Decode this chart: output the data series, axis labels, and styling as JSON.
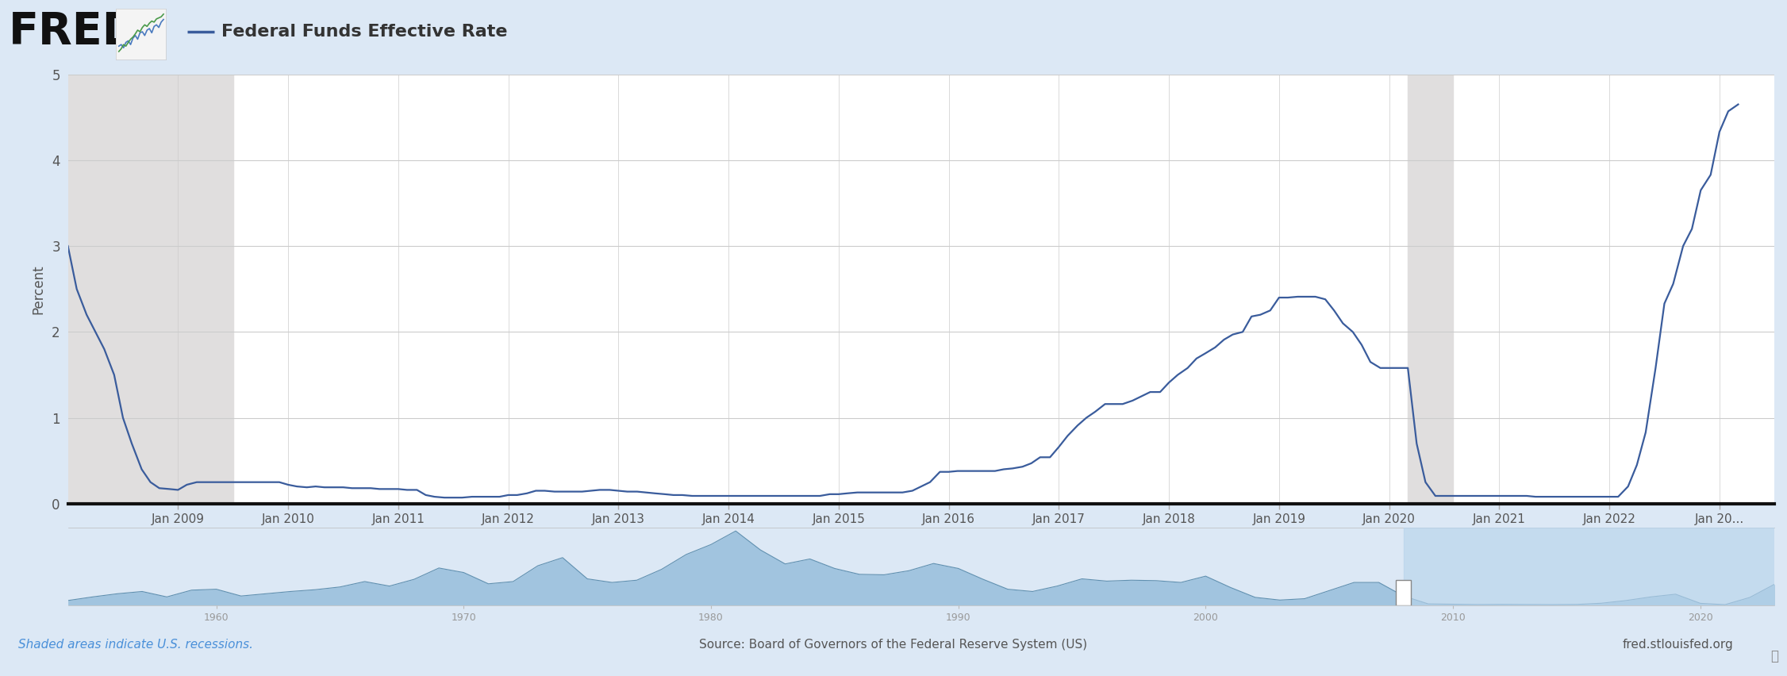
{
  "title": "Federal Funds Effective Rate",
  "ylabel": "Percent",
  "source_text": "Source: Board of Governors of the Federal Reserve System (US)",
  "shaded_text": "Shaded areas indicate U.S. recessions.",
  "fred_url": "fred.stlouisfed.org",
  "line_color": "#3a5c9c",
  "bg_color": "#dce8f5",
  "plot_bg": "#ffffff",
  "recession_color": "#e0dede",
  "ylim": [
    0,
    5
  ],
  "yticks": [
    0,
    1,
    2,
    3,
    4,
    5
  ],
  "xlim_start": 2008.0,
  "xlim_end": 2023.5,
  "recession_start1": 2008.0,
  "recession_end1": 2009.5,
  "recession_start2": 2020.17,
  "recession_end2": 2020.58,
  "xtick_years": [
    2009,
    2010,
    2011,
    2012,
    2013,
    2014,
    2015,
    2016,
    2017,
    2018,
    2019,
    2020,
    2021,
    2022,
    2023
  ],
  "xtick_labels": [
    "Jan 2009",
    "Jan 2010",
    "Jan 2011",
    "Jan 2012",
    "Jan 2013",
    "Jan 2014",
    "Jan 2015",
    "Jan 2016",
    "Jan 2017",
    "Jan 2018",
    "Jan 2019",
    "Jan 2020",
    "Jan 2021",
    "Jan 2022",
    "Jan 20..."
  ],
  "data_dates": [
    2008.0,
    2008.08,
    2008.17,
    2008.25,
    2008.33,
    2008.42,
    2008.5,
    2008.58,
    2008.67,
    2008.75,
    2008.83,
    2008.92,
    2009.0,
    2009.08,
    2009.17,
    2009.25,
    2009.33,
    2009.42,
    2009.5,
    2009.58,
    2009.67,
    2009.75,
    2009.83,
    2009.92,
    2010.0,
    2010.08,
    2010.17,
    2010.25,
    2010.33,
    2010.42,
    2010.5,
    2010.58,
    2010.67,
    2010.75,
    2010.83,
    2010.92,
    2011.0,
    2011.08,
    2011.17,
    2011.25,
    2011.33,
    2011.42,
    2011.5,
    2011.58,
    2011.67,
    2011.75,
    2011.83,
    2011.92,
    2012.0,
    2012.08,
    2012.17,
    2012.25,
    2012.33,
    2012.42,
    2012.5,
    2012.58,
    2012.67,
    2012.75,
    2012.83,
    2012.92,
    2013.0,
    2013.08,
    2013.17,
    2013.25,
    2013.33,
    2013.42,
    2013.5,
    2013.58,
    2013.67,
    2013.75,
    2013.83,
    2013.92,
    2014.0,
    2014.08,
    2014.17,
    2014.25,
    2014.33,
    2014.42,
    2014.5,
    2014.58,
    2014.67,
    2014.75,
    2014.83,
    2014.92,
    2015.0,
    2015.08,
    2015.17,
    2015.25,
    2015.33,
    2015.42,
    2015.5,
    2015.58,
    2015.67,
    2015.75,
    2015.83,
    2015.92,
    2016.0,
    2016.08,
    2016.17,
    2016.25,
    2016.33,
    2016.42,
    2016.5,
    2016.58,
    2016.67,
    2016.75,
    2016.83,
    2016.92,
    2017.0,
    2017.08,
    2017.17,
    2017.25,
    2017.33,
    2017.42,
    2017.5,
    2017.58,
    2017.67,
    2017.75,
    2017.83,
    2017.92,
    2018.0,
    2018.08,
    2018.17,
    2018.25,
    2018.33,
    2018.42,
    2018.5,
    2018.58,
    2018.67,
    2018.75,
    2018.83,
    2018.92,
    2019.0,
    2019.08,
    2019.17,
    2019.25,
    2019.33,
    2019.42,
    2019.5,
    2019.58,
    2019.67,
    2019.75,
    2019.83,
    2019.92,
    2020.0,
    2020.08,
    2020.17,
    2020.25,
    2020.33,
    2020.42,
    2020.5,
    2020.58,
    2020.67,
    2020.75,
    2020.83,
    2020.92,
    2021.0,
    2021.08,
    2021.17,
    2021.25,
    2021.33,
    2021.42,
    2021.5,
    2021.58,
    2021.67,
    2021.75,
    2021.83,
    2021.92,
    2022.0,
    2022.08,
    2022.17,
    2022.25,
    2022.33,
    2022.42,
    2022.5,
    2022.58,
    2022.67,
    2022.75,
    2022.83,
    2022.92,
    2023.0,
    2023.08,
    2023.17
  ],
  "data_values": [
    3.0,
    2.5,
    2.2,
    2.0,
    1.8,
    1.5,
    1.0,
    0.7,
    0.4,
    0.25,
    0.18,
    0.17,
    0.16,
    0.22,
    0.25,
    0.25,
    0.25,
    0.25,
    0.25,
    0.25,
    0.25,
    0.25,
    0.25,
    0.25,
    0.22,
    0.2,
    0.19,
    0.2,
    0.19,
    0.19,
    0.19,
    0.18,
    0.18,
    0.18,
    0.17,
    0.17,
    0.17,
    0.16,
    0.16,
    0.1,
    0.08,
    0.07,
    0.07,
    0.07,
    0.08,
    0.08,
    0.08,
    0.08,
    0.1,
    0.1,
    0.12,
    0.15,
    0.15,
    0.14,
    0.14,
    0.14,
    0.14,
    0.15,
    0.16,
    0.16,
    0.15,
    0.14,
    0.14,
    0.13,
    0.12,
    0.11,
    0.1,
    0.1,
    0.09,
    0.09,
    0.09,
    0.09,
    0.09,
    0.09,
    0.09,
    0.09,
    0.09,
    0.09,
    0.09,
    0.09,
    0.09,
    0.09,
    0.09,
    0.11,
    0.11,
    0.12,
    0.13,
    0.13,
    0.13,
    0.13,
    0.13,
    0.13,
    0.15,
    0.2,
    0.25,
    0.37,
    0.37,
    0.38,
    0.38,
    0.38,
    0.38,
    0.38,
    0.4,
    0.41,
    0.43,
    0.47,
    0.54,
    0.54,
    0.66,
    0.79,
    0.91,
    1.0,
    1.07,
    1.16,
    1.16,
    1.16,
    1.2,
    1.25,
    1.3,
    1.3,
    1.41,
    1.5,
    1.58,
    1.69,
    1.75,
    1.82,
    1.91,
    1.97,
    2.0,
    2.18,
    2.2,
    2.25,
    2.4,
    2.4,
    2.41,
    2.41,
    2.41,
    2.38,
    2.25,
    2.1,
    2.0,
    1.85,
    1.65,
    1.58,
    1.58,
    1.58,
    1.58,
    0.7,
    0.25,
    0.09,
    0.09,
    0.09,
    0.09,
    0.09,
    0.09,
    0.09,
    0.09,
    0.09,
    0.09,
    0.09,
    0.08,
    0.08,
    0.08,
    0.08,
    0.08,
    0.08,
    0.08,
    0.08,
    0.08,
    0.08,
    0.2,
    0.45,
    0.83,
    1.58,
    2.33,
    2.56,
    3.0,
    3.2,
    3.65,
    3.83,
    4.33,
    4.57,
    4.65
  ],
  "mini_xlim": [
    1954,
    2023
  ],
  "mini_highlight_start": 2008.0,
  "mini_highlight_end": 2023.5,
  "mini_tick_labels": [
    "1960",
    "1970",
    "1980",
    "1990",
    "2000",
    "2010",
    "2020"
  ],
  "mini_tick_positions": [
    1960,
    1970,
    1980,
    1990,
    2000,
    2010,
    2020
  ],
  "mini_fill_color": "#8db8d8",
  "mini_line_color": "#6090b0",
  "mini_highlight_color": "#b8d4eb"
}
